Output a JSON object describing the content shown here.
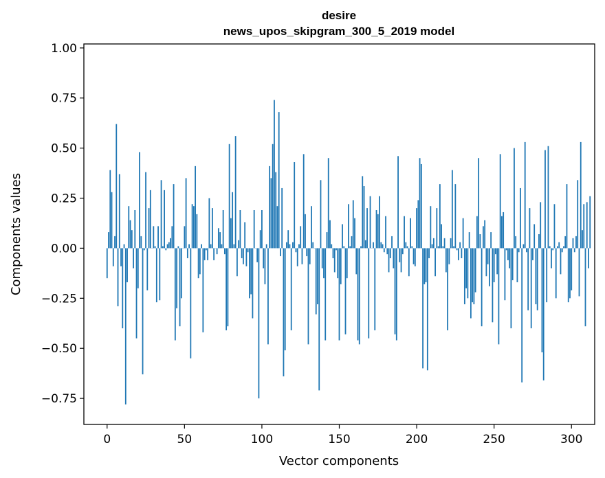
{
  "chart_data": {
    "type": "bar",
    "title": "desire",
    "subtitle": "news_upos_skipgram_300_5_2019 model",
    "xlabel": "Vector components",
    "ylabel": "Components values",
    "xlim": [
      -15,
      315
    ],
    "ylim": [
      -0.88,
      1.02
    ],
    "xticks": [
      0,
      50,
      100,
      150,
      200,
      250,
      300
    ],
    "xtick_labels": [
      "0",
      "50",
      "100",
      "150",
      "200",
      "250",
      "300"
    ],
    "yticks": [
      -0.75,
      -0.5,
      -0.25,
      0.0,
      0.25,
      0.5,
      0.75,
      1.0
    ],
    "ytick_labels": [
      "−0.75",
      "−0.50",
      "−0.25",
      "0.00",
      "0.25",
      "0.50",
      "0.75",
      "1.00"
    ],
    "bar_color": "#1f77b4",
    "values": [
      -0.15,
      0.08,
      0.39,
      0.28,
      -0.09,
      0.06,
      0.62,
      -0.29,
      0.37,
      -0.09,
      -0.4,
      0.02,
      -0.78,
      -0.17,
      0.21,
      0.14,
      0.09,
      -0.1,
      0.19,
      -0.45,
      -0.2,
      0.48,
      0.06,
      -0.63,
      -0.01,
      0.38,
      -0.21,
      0.2,
      0.29,
      0.0,
      0.11,
      0.01,
      -0.27,
      0.11,
      -0.26,
      0.34,
      0.01,
      0.29,
      -0.01,
      0.02,
      0.03,
      0.05,
      0.11,
      0.32,
      -0.46,
      -0.3,
      0.01,
      -0.39,
      -0.25,
      0.0,
      0.11,
      0.35,
      -0.05,
      0.02,
      -0.55,
      0.22,
      0.21,
      0.41,
      0.17,
      -0.15,
      -0.13,
      0.02,
      -0.42,
      -0.06,
      -0.01,
      -0.06,
      0.25,
      0.02,
      0.2,
      -0.06,
      0.0,
      -0.03,
      0.1,
      0.08,
      0.02,
      0.19,
      -0.03,
      -0.41,
      -0.39,
      0.52,
      0.15,
      0.28,
      0.02,
      0.56,
      -0.14,
      0.04,
      0.19,
      -0.05,
      -0.08,
      0.13,
      -0.09,
      -0.02,
      -0.25,
      -0.23,
      -0.35,
      0.19,
      0.0,
      -0.07,
      -0.75,
      0.09,
      0.19,
      -0.1,
      -0.18,
      0.02,
      -0.48,
      0.41,
      0.35,
      0.52,
      0.74,
      0.38,
      0.21,
      0.68,
      -0.04,
      0.3,
      -0.64,
      -0.51,
      0.03,
      0.09,
      0.02,
      -0.41,
      0.03,
      0.43,
      -0.02,
      -0.09,
      0.02,
      0.11,
      -0.08,
      0.47,
      0.17,
      -0.04,
      -0.48,
      -0.08,
      0.21,
      0.03,
      0.0,
      -0.33,
      -0.28,
      -0.71,
      0.34,
      -0.1,
      -0.15,
      -0.46,
      0.08,
      0.45,
      0.14,
      0.02,
      -0.05,
      -0.12,
      -0.01,
      -0.15,
      -0.46,
      -0.18,
      0.12,
      0.01,
      -0.43,
      -0.15,
      0.22,
      0.01,
      0.06,
      0.24,
      0.15,
      -0.13,
      -0.46,
      -0.48,
      0.01,
      0.36,
      0.31,
      0.04,
      0.2,
      -0.45,
      0.26,
      0.0,
      0.03,
      -0.41,
      0.19,
      0.17,
      0.26,
      0.03,
      0.02,
      -0.02,
      0.16,
      -0.03,
      -0.12,
      -0.05,
      0.06,
      -0.1,
      -0.43,
      -0.46,
      0.46,
      -0.07,
      -0.12,
      -0.03,
      0.16,
      0.03,
      0.01,
      -0.14,
      0.15,
      0.01,
      -0.08,
      -0.09,
      0.2,
      0.24,
      0.45,
      0.42,
      -0.6,
      -0.18,
      -0.17,
      -0.61,
      -0.05,
      0.21,
      0.02,
      0.05,
      -0.14,
      0.2,
      0.01,
      0.32,
      0.12,
      0.01,
      0.05,
      -0.12,
      -0.41,
      -0.08,
      0.05,
      0.39,
      0.01,
      0.32,
      -0.01,
      -0.06,
      0.03,
      -0.05,
      0.15,
      -0.28,
      -0.2,
      -0.25,
      0.08,
      -0.35,
      -0.27,
      -0.28,
      -0.22,
      0.16,
      0.45,
      0.07,
      -0.39,
      0.11,
      0.14,
      -0.14,
      -0.08,
      -0.19,
      0.08,
      -0.37,
      -0.17,
      -0.03,
      -0.13,
      -0.48,
      0.47,
      0.16,
      0.18,
      -0.26,
      -0.01,
      -0.06,
      -0.1,
      -0.4,
      -0.16,
      0.5,
      0.06,
      -0.17,
      -0.02,
      0.3,
      -0.67,
      0.02,
      0.53,
      -0.02,
      -0.31,
      0.2,
      -0.4,
      -0.06,
      0.12,
      -0.28,
      -0.31,
      0.07,
      0.23,
      -0.52,
      -0.66,
      0.49,
      -0.27,
      0.51,
      0.01,
      -0.1,
      -0.01,
      0.22,
      -0.25,
      0.01,
      0.03,
      -0.13,
      -0.02,
      0.01,
      0.06,
      0.32,
      -0.27,
      -0.25,
      -0.21,
      0.05,
      -0.02,
      0.06,
      0.34,
      -0.24,
      0.53,
      0.09,
      0.22,
      -0.39,
      0.23,
      -0.1,
      0.26
    ]
  }
}
